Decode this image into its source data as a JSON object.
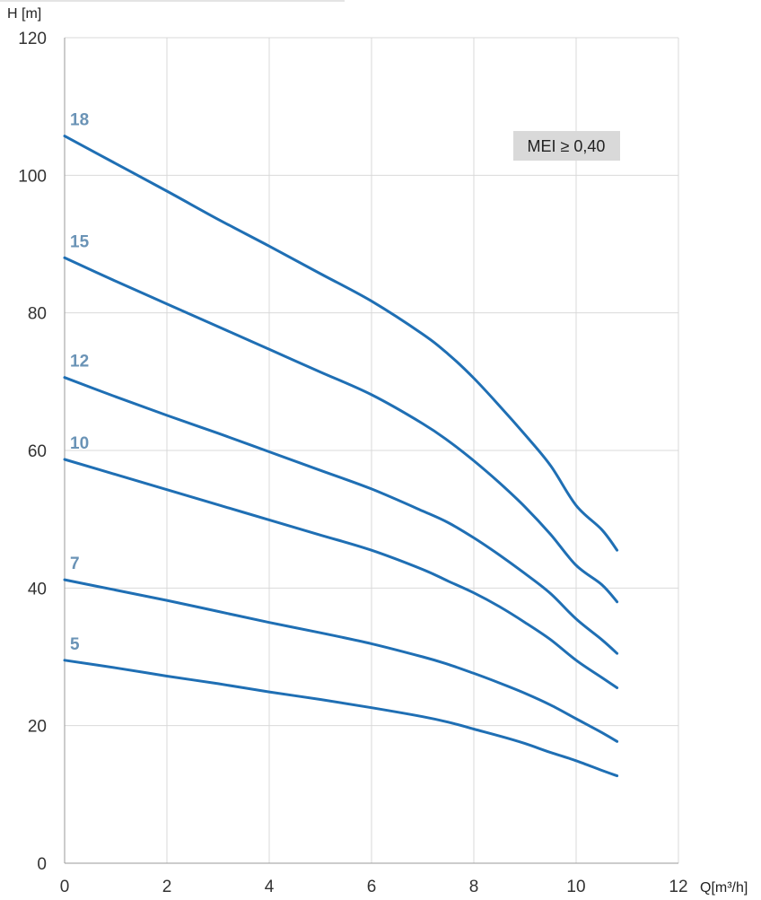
{
  "chart_data": {
    "type": "line",
    "xlabel": "Q[m³/h]",
    "ylabel": "H  [m]",
    "xlim": [
      0,
      12
    ],
    "ylim": [
      0,
      120
    ],
    "x_ticks": [
      "0",
      "2",
      "4",
      "6",
      "8",
      "10",
      "12"
    ],
    "y_ticks": [
      "0",
      "20",
      "40",
      "60",
      "80",
      "100",
      "120"
    ],
    "grid": true,
    "legend": "none",
    "annotation": "MEI ≥ 0,40",
    "colors": {
      "line": "#1f6fb4",
      "label": "#6a93b6",
      "grid": "#d9d9d9",
      "badge_bg": "#d9d9d9"
    },
    "series": [
      {
        "name": "18",
        "x": [
          0,
          1,
          2,
          3,
          4,
          5,
          6,
          7,
          7.5,
          8,
          8.5,
          9,
          9.5,
          10,
          10.5,
          10.8
        ],
        "y": [
          105.7,
          101.7,
          97.7,
          93.6,
          89.7,
          85.7,
          81.7,
          76.9,
          74,
          70.5,
          66.5,
          62.3,
          57.8,
          52,
          48.5,
          45.5
        ]
      },
      {
        "name": "15",
        "x": [
          0,
          1,
          2,
          3,
          4,
          5,
          6,
          7,
          7.5,
          8,
          8.5,
          9,
          9.5,
          10,
          10.5,
          10.8
        ],
        "y": [
          88,
          84.6,
          81.3,
          78,
          74.7,
          71.4,
          68.1,
          63.9,
          61.4,
          58.5,
          55.3,
          51.8,
          47.8,
          43.3,
          40.5,
          38
        ]
      },
      {
        "name": "12",
        "x": [
          0,
          1,
          2,
          3,
          4,
          5,
          6,
          7,
          7.5,
          8,
          8.5,
          9,
          9.5,
          10,
          10.5,
          10.8
        ],
        "y": [
          70.6,
          67.8,
          65.1,
          62.5,
          59.8,
          57.1,
          54.4,
          51.2,
          49.5,
          47.3,
          44.8,
          42.1,
          39.2,
          35.5,
          32.5,
          30.5
        ]
      },
      {
        "name": "10",
        "x": [
          0,
          1,
          2,
          3,
          4,
          5,
          6,
          7,
          7.5,
          8,
          8.5,
          9,
          9.5,
          10,
          10.5,
          10.8
        ],
        "y": [
          58.7,
          56.5,
          54.3,
          52.1,
          49.9,
          47.7,
          45.5,
          42.7,
          41,
          39.3,
          37.3,
          35,
          32.5,
          29.5,
          27,
          25.5
        ]
      },
      {
        "name": "7",
        "x": [
          0,
          1,
          2,
          3,
          4,
          5,
          6,
          7,
          7.5,
          8,
          8.5,
          9,
          9.5,
          10,
          10.5,
          10.8
        ],
        "y": [
          41.2,
          39.7,
          38.2,
          36.6,
          35,
          33.5,
          31.9,
          30,
          28.9,
          27.6,
          26.2,
          24.7,
          23,
          21,
          19,
          17.7
        ]
      },
      {
        "name": "5",
        "x": [
          0,
          1,
          2,
          3,
          4,
          5,
          6,
          7,
          7.5,
          8,
          8.5,
          9,
          9.5,
          10,
          10.5,
          10.8
        ],
        "y": [
          29.5,
          28.4,
          27.2,
          26.1,
          24.9,
          23.8,
          22.6,
          21.3,
          20.5,
          19.5,
          18.5,
          17.4,
          16.1,
          14.9,
          13.5,
          12.7
        ]
      }
    ]
  }
}
